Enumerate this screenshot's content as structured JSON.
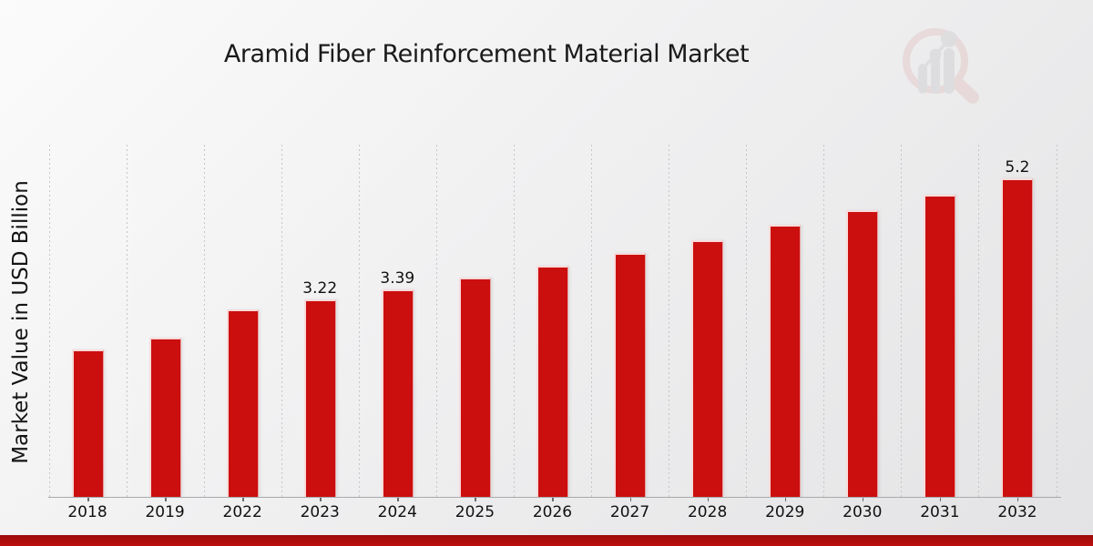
{
  "title": "Aramid Fiber Reinforcement Material Market",
  "y_axis_label": "Market Value in USD Billion",
  "watermark_icon": "magnifier-bar-chart-logo",
  "colors": {
    "bar": "#cb0e0e",
    "strip_top": "#9e0b0b",
    "strip_bottom": "#bb0e0e",
    "gridline": "#c6c6c9",
    "axis_line": "#a9a9ab",
    "text": "#111111",
    "watermark_ring": "#e5caca",
    "watermark_gray": "#d2d2d4"
  },
  "chart_data": {
    "type": "bar",
    "title": "Aramid Fiber Reinforcement Material Market",
    "xlabel": "",
    "ylabel": "Market Value in USD Billion",
    "categories": [
      "2018",
      "2019",
      "2022",
      "2023",
      "2024",
      "2025",
      "2026",
      "2027",
      "2028",
      "2029",
      "2030",
      "2031",
      "2032"
    ],
    "values": [
      2.41,
      2.6,
      3.06,
      3.22,
      3.39,
      3.57,
      3.77,
      3.97,
      4.19,
      4.43,
      4.67,
      4.93,
      5.2
    ],
    "data_labels": [
      "",
      "",
      "",
      "3.22",
      "3.39",
      "",
      "",
      "",
      "",
      "",
      "",
      "",
      "5.2"
    ],
    "ylim": [
      0,
      5.74
    ],
    "grid": "vertical-dotted",
    "legend": "none",
    "bar_color": "#cb0e0e"
  }
}
